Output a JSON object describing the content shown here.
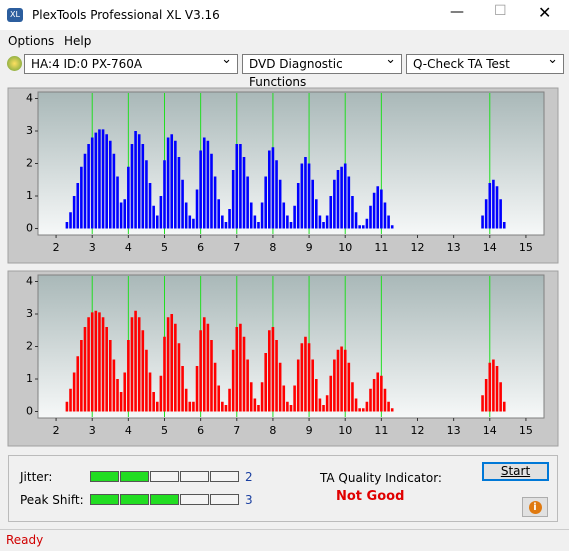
{
  "window": {
    "title": "PlexTools Professional XL V3.16",
    "menu": [
      "Options",
      "Help"
    ],
    "drive": "HA:4 ID:0  PX-760A",
    "function": "DVD Diagnostic Functions",
    "test": "Q-Check TA Test"
  },
  "chart_data": [
    {
      "type": "bar",
      "color": "#0000ff",
      "xlim": [
        1.5,
        15.5
      ],
      "ylim": [
        -0.2,
        4.2
      ],
      "xticks": [
        2,
        3,
        4,
        5,
        6,
        7,
        8,
        9,
        10,
        11,
        12,
        13,
        14,
        15
      ],
      "yticks": [
        0,
        1,
        2,
        3,
        4
      ],
      "markers": [
        3,
        4,
        5,
        6,
        7,
        8,
        9,
        10,
        11,
        14
      ],
      "marker_color": "#22dd22",
      "x": [
        2.3,
        2.4,
        2.5,
        2.6,
        2.7,
        2.8,
        2.9,
        3.0,
        3.1,
        3.2,
        3.3,
        3.4,
        3.5,
        3.6,
        3.7,
        3.8,
        3.9,
        4.0,
        4.1,
        4.2,
        4.3,
        4.4,
        4.5,
        4.6,
        4.7,
        4.8,
        4.9,
        5.0,
        5.1,
        5.2,
        5.3,
        5.4,
        5.5,
        5.6,
        5.7,
        5.8,
        5.9,
        6.0,
        6.1,
        6.2,
        6.3,
        6.4,
        6.5,
        6.6,
        6.7,
        6.8,
        6.9,
        7.0,
        7.1,
        7.2,
        7.3,
        7.4,
        7.5,
        7.6,
        7.7,
        7.8,
        7.9,
        8.0,
        8.1,
        8.2,
        8.3,
        8.4,
        8.5,
        8.6,
        8.7,
        8.8,
        8.9,
        9.0,
        9.1,
        9.2,
        9.3,
        9.4,
        9.5,
        9.6,
        9.7,
        9.8,
        9.9,
        10.0,
        10.1,
        10.2,
        10.3,
        10.4,
        10.5,
        10.6,
        10.7,
        10.8,
        10.9,
        11.0,
        11.1,
        11.2,
        11.3,
        13.8,
        13.9,
        14.0,
        14.1,
        14.2,
        14.3,
        14.4
      ],
      "values": [
        0.2,
        0.5,
        1.0,
        1.4,
        1.9,
        2.3,
        2.6,
        2.8,
        2.95,
        3.05,
        3.05,
        2.9,
        2.7,
        2.3,
        1.6,
        0.8,
        0.9,
        1.9,
        2.6,
        3.0,
        2.9,
        2.6,
        2.1,
        1.4,
        0.7,
        0.4,
        1.0,
        2.1,
        2.8,
        2.9,
        2.7,
        2.2,
        1.5,
        0.8,
        0.4,
        0.3,
        1.2,
        2.4,
        2.8,
        2.7,
        2.3,
        1.6,
        0.9,
        0.4,
        0.2,
        0.6,
        1.8,
        2.6,
        2.6,
        2.2,
        1.6,
        0.8,
        0.4,
        0.2,
        0.8,
        1.6,
        2.4,
        2.5,
        2.1,
        1.5,
        0.8,
        0.4,
        0.2,
        0.7,
        1.4,
        2.0,
        2.2,
        2.0,
        1.5,
        0.9,
        0.4,
        0.2,
        0.4,
        1.0,
        1.5,
        1.8,
        1.9,
        2.0,
        1.6,
        1.0,
        0.5,
        0.1,
        0.1,
        0.3,
        0.7,
        1.1,
        1.3,
        1.2,
        0.8,
        0.4,
        0.1,
        0.4,
        0.9,
        1.4,
        1.5,
        1.3,
        0.9,
        0.2
      ]
    },
    {
      "type": "bar",
      "color": "#ff0000",
      "xlim": [
        1.5,
        15.5
      ],
      "ylim": [
        -0.2,
        4.2
      ],
      "xticks": [
        2,
        3,
        4,
        5,
        6,
        7,
        8,
        9,
        10,
        11,
        12,
        13,
        14,
        15
      ],
      "yticks": [
        0,
        1,
        2,
        3,
        4
      ],
      "markers": [
        3,
        4,
        5,
        6,
        7,
        8,
        9,
        10,
        11,
        14
      ],
      "marker_color": "#22dd22",
      "x": [
        2.3,
        2.4,
        2.5,
        2.6,
        2.7,
        2.8,
        2.9,
        3.0,
        3.1,
        3.2,
        3.3,
        3.4,
        3.5,
        3.6,
        3.7,
        3.8,
        3.9,
        4.0,
        4.1,
        4.2,
        4.3,
        4.4,
        4.5,
        4.6,
        4.7,
        4.8,
        4.9,
        5.0,
        5.1,
        5.2,
        5.3,
        5.4,
        5.5,
        5.6,
        5.7,
        5.8,
        5.9,
        6.0,
        6.1,
        6.2,
        6.3,
        6.4,
        6.5,
        6.6,
        6.7,
        6.8,
        6.9,
        7.0,
        7.1,
        7.2,
        7.3,
        7.4,
        7.5,
        7.6,
        7.7,
        7.8,
        7.9,
        8.0,
        8.1,
        8.2,
        8.3,
        8.4,
        8.5,
        8.6,
        8.7,
        8.8,
        8.9,
        9.0,
        9.1,
        9.2,
        9.3,
        9.4,
        9.5,
        9.6,
        9.7,
        9.8,
        9.9,
        10.0,
        10.1,
        10.2,
        10.3,
        10.4,
        10.5,
        10.6,
        10.7,
        10.8,
        10.9,
        11.0,
        11.1,
        11.2,
        11.3,
        13.8,
        13.9,
        14.0,
        14.1,
        14.2,
        14.3,
        14.4
      ],
      "values": [
        0.3,
        0.7,
        1.2,
        1.7,
        2.2,
        2.6,
        2.9,
        3.05,
        3.1,
        3.05,
        2.9,
        2.6,
        2.2,
        1.6,
        1.0,
        0.6,
        1.2,
        2.2,
        2.9,
        3.1,
        2.9,
        2.5,
        1.9,
        1.2,
        0.6,
        0.3,
        1.1,
        2.3,
        2.9,
        3.0,
        2.7,
        2.1,
        1.4,
        0.7,
        0.3,
        0.3,
        1.4,
        2.5,
        2.9,
        2.7,
        2.2,
        1.5,
        0.8,
        0.3,
        0.2,
        0.7,
        1.9,
        2.6,
        2.7,
        2.3,
        1.6,
        0.9,
        0.4,
        0.2,
        0.9,
        1.8,
        2.5,
        2.6,
        2.2,
        1.5,
        0.8,
        0.3,
        0.2,
        0.8,
        1.6,
        2.1,
        2.3,
        2.1,
        1.6,
        1.0,
        0.4,
        0.2,
        0.5,
        1.1,
        1.6,
        1.9,
        2.0,
        1.9,
        1.5,
        0.9,
        0.4,
        0.1,
        0.1,
        0.3,
        0.7,
        1.0,
        1.2,
        1.1,
        0.7,
        0.3,
        0.1,
        0.5,
        1.0,
        1.5,
        1.6,
        1.4,
        0.9,
        0.3
      ]
    }
  ],
  "results": {
    "jitter_label": "Jitter:",
    "jitter": 2,
    "peak_label": "Peak Shift:",
    "peak": 3,
    "ta_label": "TA Quality Indicator:",
    "ta_result": "Not Good",
    "start": "Start"
  },
  "status": "Ready"
}
